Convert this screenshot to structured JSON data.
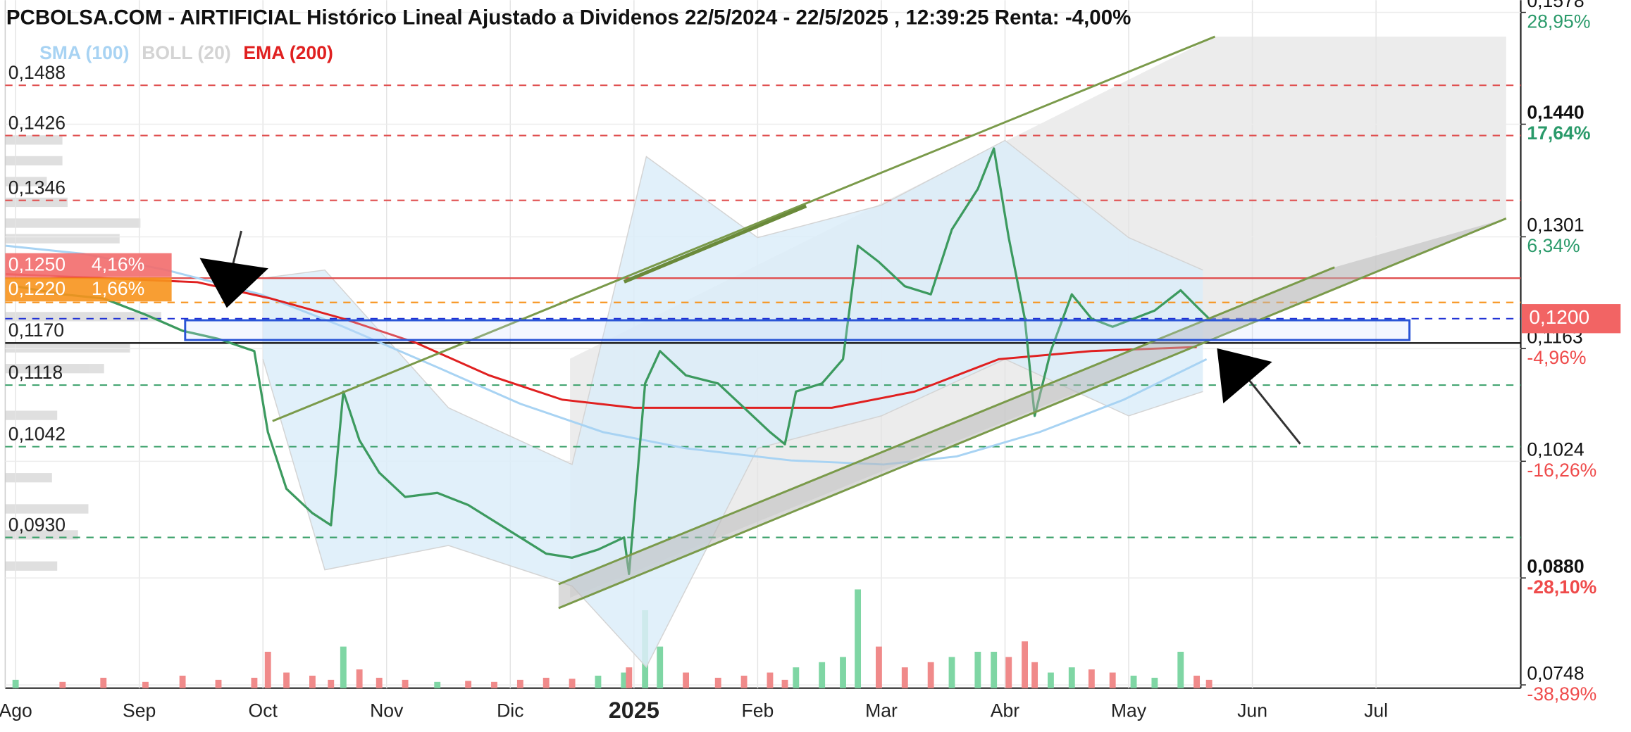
{
  "chart_data": {
    "type": "line",
    "title": "PCBOLSA.COM - AIRTIFICIAL Histórico Lineal Ajustado a Dividenos 22/5/2024 - 22/5/2025 , 12:39:25 Renta: -4,00%",
    "xlim": [
      -0.084,
      12.17
    ],
    "xticks": [
      {
        "value": 0,
        "label": "Ago"
      },
      {
        "value": 1,
        "label": "Sep"
      },
      {
        "value": 2,
        "label": "Oct"
      },
      {
        "value": 3,
        "label": "Nov"
      },
      {
        "value": 4,
        "label": "Dic"
      },
      {
        "value": 5,
        "label": "2025"
      },
      {
        "value": 6,
        "label": "Feb"
      },
      {
        "value": 7,
        "label": "Mar"
      },
      {
        "value": 8,
        "label": "Abr"
      },
      {
        "value": 9,
        "label": "May"
      },
      {
        "value": 10,
        "label": "Jun"
      },
      {
        "value": 11,
        "label": "Jul"
      }
    ],
    "xtick_bold": [
      false,
      false,
      false,
      false,
      false,
      true,
      false,
      false,
      false,
      false,
      false,
      false
    ],
    "ylim": [
      0.0744,
      0.1593
    ],
    "yticks": [
      {
        "value": 0.1578,
        "label": "0,1578"
      },
      {
        "value": 0.144,
        "label": "0,1440"
      },
      {
        "value": 0.1301,
        "label": "0,1301"
      },
      {
        "value": 0.1163,
        "label": "0,1163"
      },
      {
        "value": 0.1024,
        "label": "0,1024"
      },
      {
        "value": 0.088,
        "label": "0,0880"
      },
      {
        "value": 0.0748,
        "label": "0,0748"
      }
    ],
    "ytick_changes": [
      "28,95%",
      "17,64%",
      "6,34%",
      "-4,96%",
      "-16,26%",
      "-28,10%",
      "-38,89%"
    ],
    "ytick_bold": [
      false,
      true,
      false,
      false,
      false,
      true,
      false
    ],
    "grid": true,
    "last_price": {
      "value": 0.12,
      "label": "0,1200",
      "color": "#f26464"
    },
    "price": {
      "color": "#3c9a5f",
      "x": [
        0,
        0.38,
        0.71,
        1.05,
        1.35,
        1.64,
        1.93,
        2.04,
        2.19,
        2.4,
        2.55,
        2.65,
        2.78,
        2.94,
        3.15,
        3.41,
        3.66,
        3.87,
        4.08,
        4.29,
        4.5,
        4.71,
        4.92,
        4.96,
        5.09,
        5.21,
        5.42,
        5.68,
        5.89,
        6.1,
        6.22,
        6.31,
        6.52,
        6.69,
        6.81,
        6.98,
        7.19,
        7.4,
        7.57,
        7.78,
        7.91,
        8.03,
        8.16,
        8.24,
        8.37,
        8.54,
        8.7,
        8.87,
        9.04,
        9.21,
        9.42,
        9.55,
        9.65
      ],
      "values": [
        0.124,
        0.123,
        0.1225,
        0.1205,
        0.1185,
        0.1175,
        0.116,
        0.106,
        0.099,
        0.096,
        0.0945,
        0.111,
        0.105,
        0.101,
        0.098,
        0.0985,
        0.097,
        0.095,
        0.093,
        0.091,
        0.0905,
        0.0915,
        0.093,
        0.0885,
        0.112,
        0.116,
        0.113,
        0.112,
        0.109,
        0.106,
        0.1045,
        0.111,
        0.112,
        0.115,
        0.129,
        0.127,
        0.124,
        0.123,
        0.131,
        0.136,
        0.141,
        0.13,
        0.12,
        0.108,
        0.116,
        0.123,
        0.12,
        0.119,
        0.12,
        0.121,
        0.1235,
        0.1215,
        0.12
      ]
    },
    "volume": {
      "lim": [
        0,
        100
      ],
      "up_color": "#7fd6a4",
      "down_color": "#f08a8a",
      "values": [
        8,
        6,
        10,
        6,
        12,
        8,
        10,
        35,
        15,
        12,
        8,
        40,
        18,
        10,
        8,
        6,
        7,
        6,
        8,
        10,
        9,
        12,
        15,
        20,
        75,
        40,
        15,
        10,
        12,
        15,
        8,
        20,
        25,
        30,
        95,
        40,
        20,
        25,
        30,
        35,
        35,
        30,
        45,
        25,
        15,
        20,
        18,
        15,
        12,
        10,
        35,
        12,
        8
      ]
    },
    "indicators": [
      {
        "name": "SMA (100)",
        "color": "#a8d3f3",
        "x": [
          -0.08,
          0.55,
          1.22,
          1.98,
          2.65,
          3.41,
          4.08,
          4.75,
          5.42,
          6.27,
          7.02,
          7.61,
          8.28,
          8.96,
          9.63
        ],
        "values": [
          0.129,
          0.128,
          0.126,
          0.123,
          0.119,
          0.114,
          0.1095,
          0.106,
          0.104,
          0.1025,
          0.102,
          0.103,
          0.106,
          0.11,
          0.115
        ]
      },
      {
        "name": "BOLL (20)",
        "color": "#d4d4d4",
        "fill": "#dcedf9",
        "x": [
          2.0,
          2.5,
          3.5,
          4.5,
          5.1,
          6.0,
          7.0,
          8.0,
          9.0,
          9.6
        ],
        "upper": [
          0.125,
          0.126,
          0.109,
          0.102,
          0.14,
          0.13,
          0.134,
          0.142,
          0.13,
          0.126
        ],
        "lower": [
          0.115,
          0.089,
          0.092,
          0.087,
          0.077,
          0.104,
          0.108,
          0.115,
          0.108,
          0.111
        ]
      },
      {
        "name": "EMA (200)",
        "color": "#e02020",
        "x": [
          -0.08,
          0.71,
          1.47,
          2.06,
          2.65,
          3.24,
          3.83,
          4.42,
          5.0,
          5.76,
          6.6,
          7.27,
          7.95,
          8.7,
          9.55
        ],
        "values": [
          0.1255,
          0.125,
          0.1245,
          0.1225,
          0.12,
          0.117,
          0.113,
          0.11,
          0.109,
          0.109,
          0.109,
          0.111,
          0.115,
          0.116,
          0.1165
        ]
      }
    ],
    "levels": [
      {
        "value": 0.1488,
        "label": "0,1488",
        "color": "#e05050",
        "style": "dashed"
      },
      {
        "value": 0.1426,
        "label": "0,1426",
        "color": "#e05050",
        "style": "dashed"
      },
      {
        "value": 0.1346,
        "label": "0,1346",
        "color": "#e05050",
        "style": "dashed"
      },
      {
        "value": 0.125,
        "label": "0,1250",
        "badge": "4,16%",
        "badge_color": "#f26b6b",
        "color": "#e05050",
        "style": "solid"
      },
      {
        "value": 0.122,
        "label": "0,1220",
        "badge": "1,66%",
        "badge_color": "#f7941d",
        "color": "#f7941d",
        "style": "dashed"
      },
      {
        "value": 0.12,
        "color": "#2233d6",
        "style": "dashed"
      },
      {
        "value": 0.117,
        "label": "0,1170",
        "color": "#111111",
        "style": "solid"
      },
      {
        "value": 0.1118,
        "label": "0,1118",
        "color": "#3aa06a",
        "style": "dashed"
      },
      {
        "value": 0.1042,
        "label": "0,1042",
        "color": "#3aa06a",
        "style": "dashed"
      },
      {
        "value": 0.093,
        "label": "0,0930",
        "color": "#3aa06a",
        "style": "dashed"
      }
    ]
  }
}
